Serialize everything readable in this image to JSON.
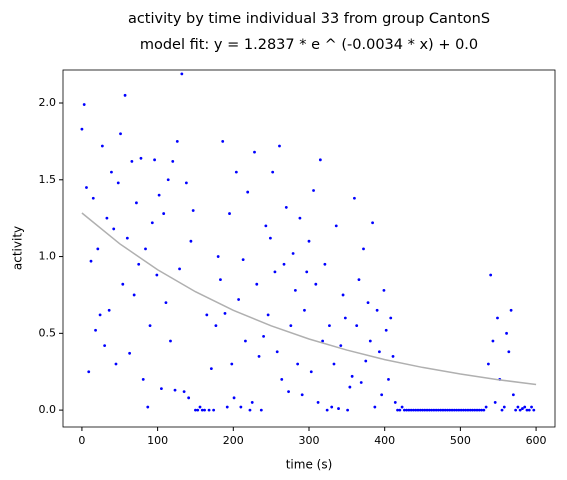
{
  "chart_data": {
    "type": "scatter",
    "title": "activity by time individual 33 from group CantonS",
    "subtitle": "model fit: y = 1.2837 * e ^ (-0.0034 * x) + 0.0",
    "x_label": "time (s)",
    "y_label": "activity",
    "xlim": [
      -25,
      625
    ],
    "ylim": [
      -0.11,
      2.215
    ],
    "xticks": [
      0,
      100,
      200,
      300,
      400,
      500,
      600
    ],
    "yticks": [
      {
        "value": 0,
        "label": "0.0"
      },
      0.5,
      {
        "value": 1,
        "label": "1.0"
      },
      1.5,
      {
        "value": 2,
        "label": "2.0"
      }
    ],
    "series": [
      {
        "color": "#0000ff",
        "x": [
          0,
          3,
          6,
          9,
          12,
          15,
          18,
          21,
          24,
          27,
          30,
          33,
          36,
          39,
          42,
          45,
          48,
          51,
          54,
          57,
          60,
          63,
          66,
          69,
          72,
          75,
          78,
          81,
          84,
          87,
          90,
          93,
          96,
          99,
          102,
          105,
          108,
          111,
          114,
          117,
          120,
          123,
          126,
          129,
          132,
          135,
          138,
          141,
          144,
          147,
          150,
          153,
          156,
          159,
          162,
          165,
          168,
          171,
          174,
          177,
          180,
          183,
          186,
          189,
          192,
          195,
          198,
          201,
          204,
          207,
          210,
          213,
          216,
          219,
          222,
          225,
          228,
          231,
          234,
          237,
          240,
          243,
          246,
          249,
          252,
          255,
          258,
          261,
          264,
          267,
          270,
          273,
          276,
          279,
          282,
          285,
          288,
          291,
          294,
          297,
          300,
          303,
          306,
          309,
          312,
          315,
          318,
          321,
          324,
          327,
          330,
          333,
          336,
          339,
          342,
          345,
          348,
          351,
          354,
          357,
          360,
          363,
          366,
          369,
          372,
          375,
          378,
          381,
          384,
          387,
          390,
          393,
          396,
          399,
          402,
          405,
          408,
          411,
          414,
          417,
          420,
          423,
          426,
          429,
          432,
          435,
          438,
          441,
          444,
          447,
          450,
          453,
          456,
          459,
          462,
          465,
          468,
          471,
          474,
          477,
          480,
          483,
          486,
          489,
          492,
          495,
          498,
          501,
          504,
          507,
          510,
          513,
          516,
          519,
          522,
          525,
          528,
          531,
          534,
          537,
          540,
          543,
          546,
          549,
          552,
          555,
          558,
          561,
          564,
          567,
          570,
          573,
          576,
          579,
          582,
          585,
          588,
          591,
          594,
          597
        ],
        "values": [
          1.83,
          1.99,
          1.45,
          0.25,
          0.97,
          1.38,
          0.52,
          1.05,
          0.62,
          1.72,
          0.42,
          1.25,
          0.65,
          1.55,
          1.18,
          0.3,
          1.48,
          1.8,
          0.82,
          2.05,
          1.12,
          0.37,
          1.62,
          0.75,
          1.35,
          0.95,
          1.64,
          0.2,
          1.05,
          0.02,
          0.55,
          1.22,
          1.63,
          0.88,
          1.4,
          0.14,
          1.28,
          0.7,
          1.5,
          0.45,
          1.62,
          0.13,
          1.75,
          0.92,
          2.19,
          0.12,
          1.48,
          0.08,
          1.1,
          1.3,
          0,
          0,
          0.02,
          0,
          0,
          0.62,
          0,
          0.27,
          0,
          0.55,
          1.0,
          0.85,
          1.75,
          0.63,
          0.02,
          1.28,
          0.3,
          0.08,
          1.55,
          0.72,
          0.02,
          0.98,
          0.45,
          1.42,
          0,
          0.05,
          1.68,
          0.82,
          0.35,
          0,
          0.48,
          1.2,
          0.62,
          1.12,
          1.55,
          0.9,
          0.38,
          1.72,
          0.2,
          0.95,
          1.32,
          0.12,
          0.55,
          1.02,
          0.78,
          0.3,
          1.25,
          0.1,
          0.65,
          0.9,
          1.1,
          0.25,
          1.43,
          0.82,
          0.05,
          1.63,
          0.45,
          0.95,
          0,
          0.55,
          0.02,
          0.3,
          1.2,
          0.01,
          0.42,
          0.75,
          0.6,
          0,
          0.15,
          0.22,
          1.38,
          0.55,
          0.85,
          0.18,
          1.05,
          0.32,
          0.7,
          0.45,
          1.22,
          0.02,
          0.65,
          0.38,
          0.1,
          0.78,
          0.52,
          0.2,
          0.6,
          0.35,
          0.05,
          0,
          0,
          0.02,
          0,
          0,
          0,
          0,
          0,
          0,
          0,
          0,
          0,
          0,
          0,
          0,
          0,
          0,
          0,
          0,
          0,
          0,
          0,
          0,
          0,
          0,
          0,
          0,
          0,
          0,
          0,
          0,
          0,
          0,
          0,
          0,
          0,
          0,
          0,
          0,
          0.02,
          0.3,
          0.88,
          0.45,
          0.05,
          0.6,
          0.2,
          0,
          0.02,
          0.5,
          0.38,
          0.65,
          0.1,
          0,
          0.02,
          0,
          0.01,
          0.02,
          0,
          0,
          0.02,
          0
        ]
      },
      {
        "color": "#b0b0b0",
        "line": true,
        "x": [
          0,
          50,
          100,
          150,
          200,
          250,
          300,
          350,
          400,
          450,
          500,
          550,
          600
        ],
        "values": [
          1.2837,
          1.083,
          0.914,
          0.771,
          0.65,
          0.549,
          0.463,
          0.391,
          0.329,
          0.278,
          0.235,
          0.198,
          0.167
        ]
      }
    ]
  }
}
